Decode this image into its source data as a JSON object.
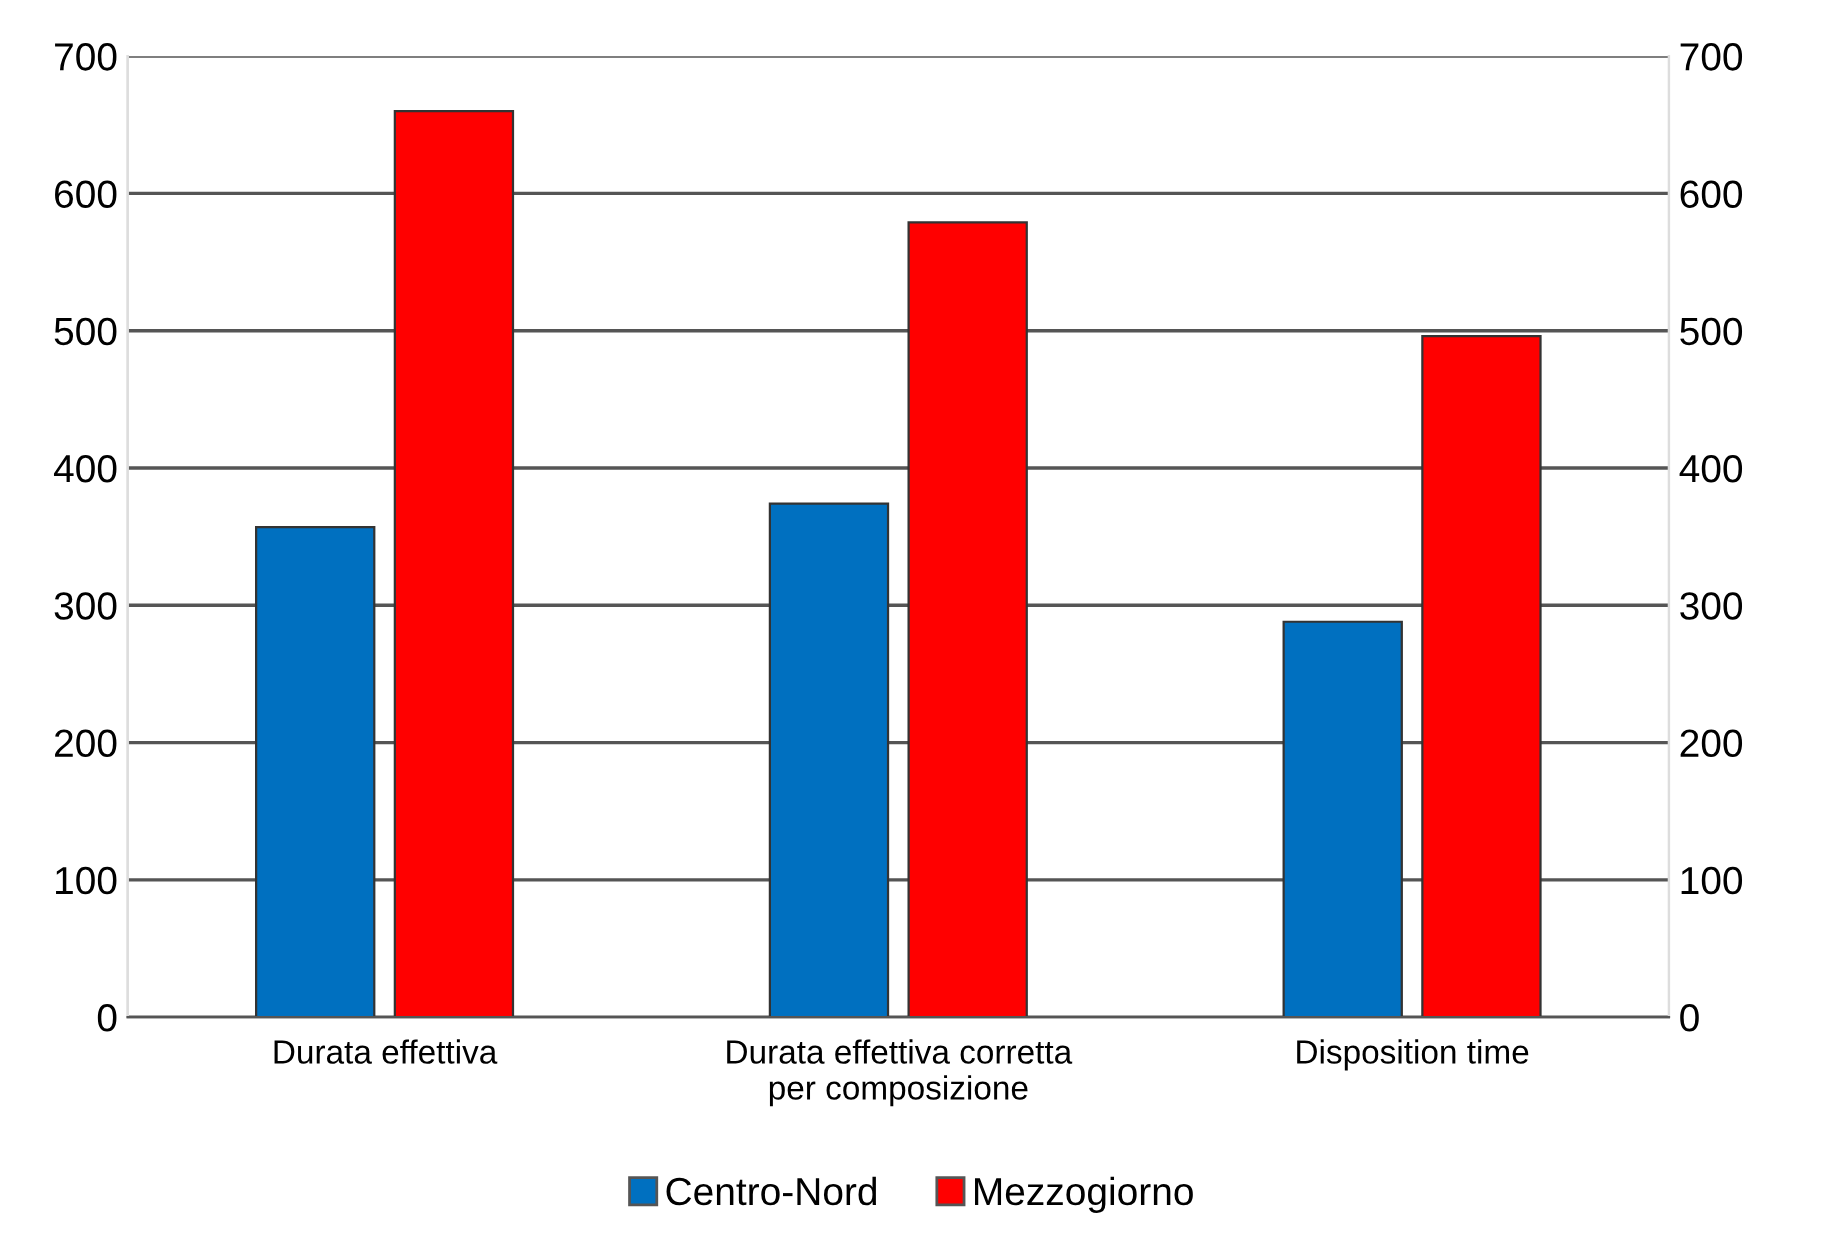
{
  "chart_data": {
    "type": "bar",
    "categories": [
      "Durata effettiva",
      "Durata effettiva corretta\nper composizione",
      "Disposition time"
    ],
    "series": [
      {
        "name": "Centro-Nord",
        "color": "#0070c0",
        "values": [
          357,
          374,
          288
        ]
      },
      {
        "name": "Mezzogiorno",
        "color": "#ff0000",
        "values": [
          660,
          579,
          496
        ]
      }
    ],
    "ylim": [
      0,
      700
    ],
    "yticks": [
      0,
      100,
      200,
      300,
      400,
      500,
      600,
      700
    ],
    "y2lim": [
      0,
      700
    ],
    "y2ticks": [
      0,
      100,
      200,
      300,
      400,
      500,
      600,
      700
    ],
    "grid": "y",
    "legend": "bottom"
  }
}
